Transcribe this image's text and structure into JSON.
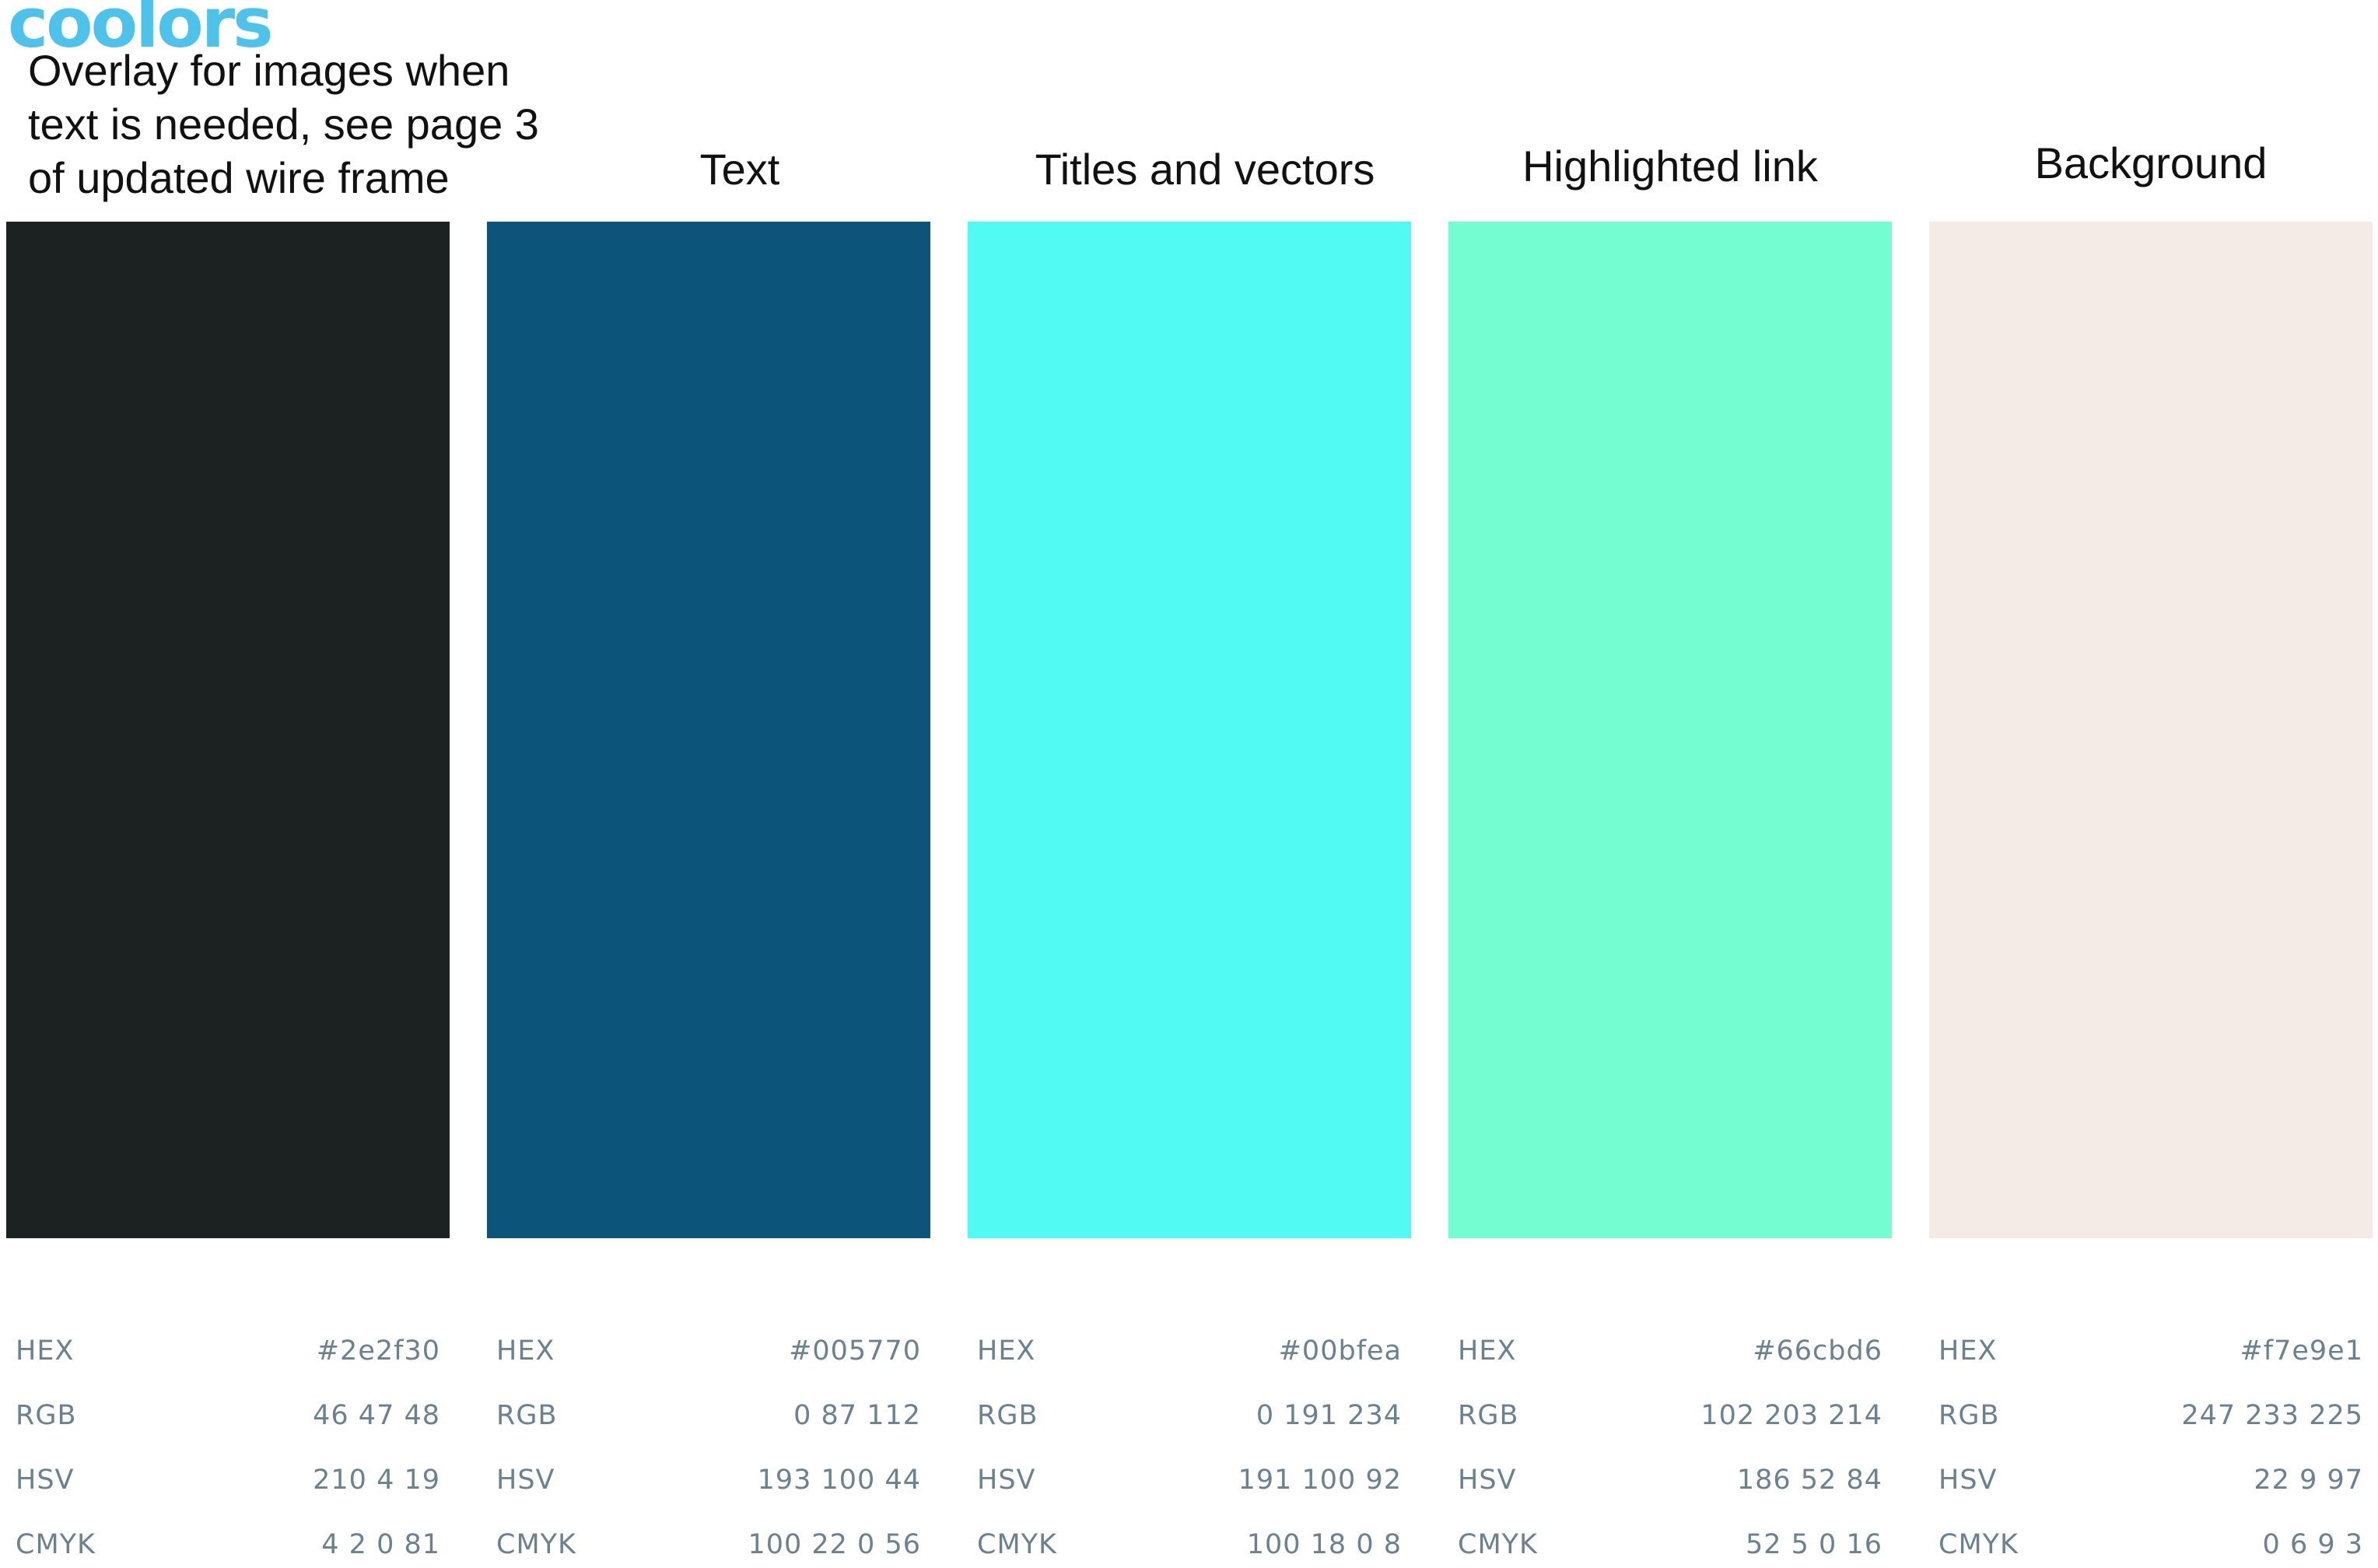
{
  "logo": "coolors",
  "note": "Overlay for images when text is needed, see page 3 of updated wire frame",
  "row_labels": {
    "hex": "HEX",
    "rgb": "RGB",
    "hsv": "HSV",
    "cmyk": "CMYK"
  },
  "colors": [
    {
      "title": "",
      "swatch": "#1c2122",
      "hex": "#2e2f30",
      "rgb": "46 47 48",
      "hsv": "210 4 19",
      "cmyk": "4 2 0 81"
    },
    {
      "title": "Text",
      "swatch": "#0c5479",
      "hex": "#005770",
      "rgb": "0 87 112",
      "hsv": "193 100 44",
      "cmyk": "100 22 0 56"
    },
    {
      "title": "Titles and vectors",
      "swatch": "#51faf2",
      "hex": "#00bfea",
      "rgb": "0 191 234",
      "hsv": "191 100 92",
      "cmyk": "100 18 0 8"
    },
    {
      "title": "Highlighted link",
      "swatch": "#74fdd1",
      "hex": "#66cbd6",
      "rgb": "102 203 214",
      "hsv": "186 52 84",
      "cmyk": "52 5 0 16"
    },
    {
      "title": "Background",
      "swatch": "#f5ebe6",
      "hex": "#f7e9e1",
      "rgb": "247 233 225",
      "hsv": "22 9 97",
      "cmyk": "0 6 9 3"
    }
  ]
}
